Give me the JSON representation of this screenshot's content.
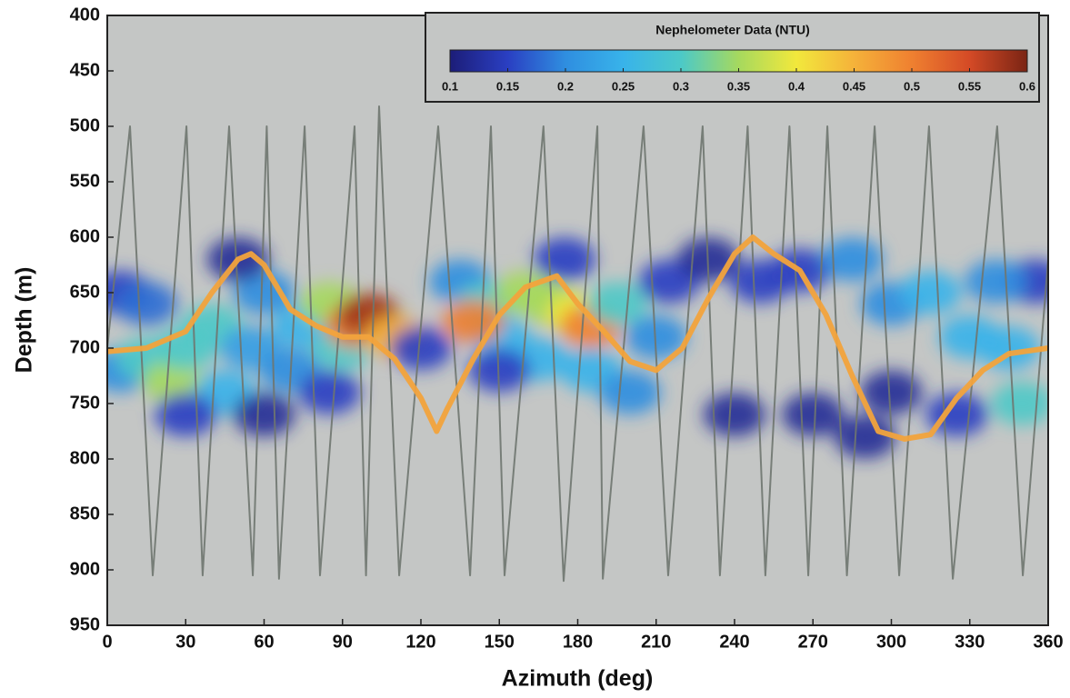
{
  "chart_data": {
    "type": "heatmap",
    "xlabel": "Azimuth (deg)",
    "ylabel": "Depth (m)",
    "xlim": [
      0,
      360
    ],
    "xticks": [
      0,
      30,
      60,
      90,
      120,
      150,
      180,
      210,
      240,
      270,
      300,
      330,
      360
    ],
    "ylim": [
      950,
      400
    ],
    "yticks": [
      400,
      450,
      500,
      550,
      600,
      650,
      700,
      750,
      800,
      850,
      900,
      950
    ],
    "background": "#c4c6c5",
    "colorbar": {
      "title": "Nephelometer Data (NTU)",
      "lim": [
        0.1,
        0.6
      ],
      "ticks": [
        0.1,
        0.15,
        0.2,
        0.25,
        0.3,
        0.35,
        0.4,
        0.45,
        0.5,
        0.55,
        0.6
      ],
      "colormap": [
        "#1c1d78",
        "#2a3fc2",
        "#2f8ee0",
        "#38b3ea",
        "#4cc9c8",
        "#a6d95e",
        "#f2e83c",
        "#f5b23a",
        "#ef8030",
        "#d44a26",
        "#7a2414"
      ]
    },
    "cells": {
      "x": [
        5,
        5,
        15,
        25,
        30,
        15,
        40,
        45,
        55,
        60,
        70,
        75,
        85,
        90,
        95,
        100,
        110,
        85,
        60,
        30,
        50,
        120,
        135,
        145,
        150,
        160,
        170,
        180,
        185,
        195,
        165,
        185,
        200,
        210,
        150,
        175,
        215,
        230,
        140,
        250,
        265,
        285,
        300,
        315,
        330,
        345,
        350,
        325,
        300,
        270,
        240,
        355,
        290,
        340
      ],
      "y": [
        650,
        720,
        710,
        730,
        700,
        660,
        680,
        740,
        700,
        650,
        720,
        680,
        660,
        700,
        680,
        670,
        690,
        740,
        760,
        760,
        620,
        700,
        640,
        660,
        690,
        650,
        660,
        670,
        680,
        660,
        710,
        720,
        740,
        690,
        720,
        620,
        640,
        620,
        676,
        640,
        630,
        620,
        660,
        650,
        690,
        700,
        750,
        760,
        740,
        760,
        760,
        640,
        780,
        640
      ],
      "values": [
        0.15,
        0.2,
        0.3,
        0.35,
        0.3,
        0.18,
        0.3,
        0.25,
        0.22,
        0.2,
        0.2,
        0.25,
        0.35,
        0.3,
        0.5,
        0.58,
        0.45,
        0.15,
        0.12,
        0.15,
        0.12,
        0.15,
        0.2,
        0.3,
        0.25,
        0.35,
        0.35,
        0.4,
        0.5,
        0.3,
        0.25,
        0.25,
        0.2,
        0.2,
        0.15,
        0.15,
        0.15,
        0.12,
        0.5,
        0.15,
        0.15,
        0.2,
        0.2,
        0.25,
        0.25,
        0.25,
        0.3,
        0.15,
        0.12,
        0.12,
        0.12,
        0.15,
        0.12,
        0.2
      ]
    },
    "series": [
      {
        "color": "#6f756f",
        "x": [
          0,
          8.7,
          17.4,
          30.3,
          36.5,
          46.6,
          55.7,
          61,
          65.7,
          75.5,
          81.4,
          94.6,
          99,
          104,
          111.7,
          126.6,
          138.8,
          146.8,
          152,
          166.9,
          174.6,
          187.5,
          189.6,
          205.2,
          214.6,
          227.8,
          234.4,
          245,
          251.8,
          261,
          268.2,
          275.5,
          283,
          293.6,
          303,
          314.4,
          323.5,
          340.5,
          350.3,
          360
        ],
        "y": [
          700,
          500,
          905,
          500,
          905,
          500,
          905,
          500,
          908,
          500,
          905,
          500,
          905,
          482,
          905,
          500,
          905,
          500,
          905,
          500,
          910,
          500,
          908,
          500,
          905,
          500,
          905,
          500,
          905,
          500,
          905,
          500,
          905,
          500,
          905,
          500,
          908,
          500,
          905,
          620
        ]
      },
      {
        "color": "#f2a33c",
        "x": [
          0,
          15,
          30,
          40,
          50,
          55,
          60,
          70,
          80,
          90,
          100,
          110,
          120,
          126,
          130,
          140,
          150,
          160,
          172,
          180,
          190,
          200,
          210,
          220,
          230,
          240,
          247,
          255,
          265,
          275,
          285,
          295,
          305,
          315,
          325,
          335,
          345,
          360
        ],
        "y": [
          703,
          700,
          685,
          650,
          620,
          615,
          625,
          665,
          680,
          690,
          690,
          710,
          745,
          775,
          755,
          710,
          670,
          645,
          635,
          660,
          685,
          712,
          720,
          700,
          655,
          615,
          600,
          615,
          630,
          670,
          725,
          775,
          782,
          778,
          745,
          720,
          705,
          700
        ]
      }
    ]
  }
}
